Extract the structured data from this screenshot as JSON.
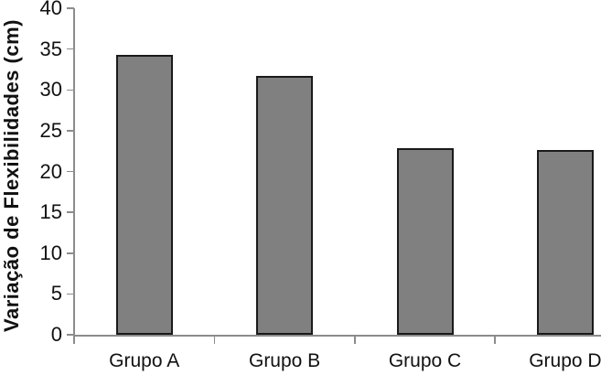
{
  "chart_data": {
    "type": "bar",
    "title": "",
    "categories": [
      "Grupo A",
      "Grupo B",
      "Grupo C",
      "Grupo D"
    ],
    "values": [
      34.3,
      31.7,
      22.9,
      22.6
    ],
    "xlabel": "",
    "ylabel": "Variação de Flexibilidades (cm)",
    "ylim": [
      0,
      40
    ],
    "yticks": [
      0,
      5,
      10,
      15,
      20,
      25,
      30,
      35,
      40
    ],
    "grid": false,
    "legend": false,
    "colors": {
      "bar_fill": "#808080",
      "bar_border": "#1a1a1a",
      "axis": "#8c8c8c",
      "text": "#111111",
      "background": "#ffffff"
    }
  }
}
